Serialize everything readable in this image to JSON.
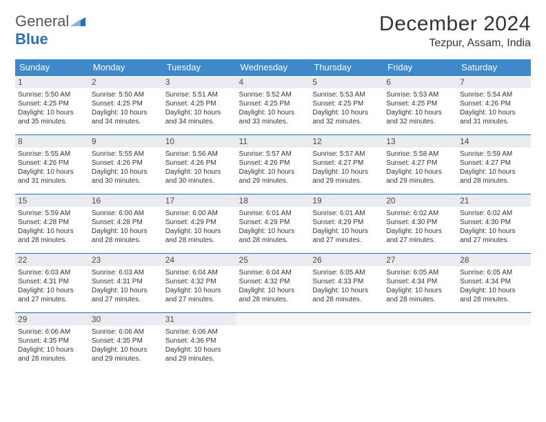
{
  "logo": {
    "part1": "General",
    "part2": "Blue"
  },
  "title": "December 2024",
  "location": "Tezpur, Assam, India",
  "header_colors": {
    "bar": "#3d89c9",
    "border": "#2b6fb5",
    "daynum_bg": "#e8ecef"
  },
  "weekdays": [
    "Sunday",
    "Monday",
    "Tuesday",
    "Wednesday",
    "Thursday",
    "Friday",
    "Saturday"
  ],
  "days": [
    {
      "n": 1,
      "sunrise": "5:50 AM",
      "sunset": "4:25 PM",
      "daylight": "10 hours and 35 minutes."
    },
    {
      "n": 2,
      "sunrise": "5:50 AM",
      "sunset": "4:25 PM",
      "daylight": "10 hours and 34 minutes."
    },
    {
      "n": 3,
      "sunrise": "5:51 AM",
      "sunset": "4:25 PM",
      "daylight": "10 hours and 34 minutes."
    },
    {
      "n": 4,
      "sunrise": "5:52 AM",
      "sunset": "4:25 PM",
      "daylight": "10 hours and 33 minutes."
    },
    {
      "n": 5,
      "sunrise": "5:53 AM",
      "sunset": "4:25 PM",
      "daylight": "10 hours and 32 minutes."
    },
    {
      "n": 6,
      "sunrise": "5:53 AM",
      "sunset": "4:25 PM",
      "daylight": "10 hours and 32 minutes."
    },
    {
      "n": 7,
      "sunrise": "5:54 AM",
      "sunset": "4:26 PM",
      "daylight": "10 hours and 31 minutes."
    },
    {
      "n": 8,
      "sunrise": "5:55 AM",
      "sunset": "4:26 PM",
      "daylight": "10 hours and 31 minutes."
    },
    {
      "n": 9,
      "sunrise": "5:55 AM",
      "sunset": "4:26 PM",
      "daylight": "10 hours and 30 minutes."
    },
    {
      "n": 10,
      "sunrise": "5:56 AM",
      "sunset": "4:26 PM",
      "daylight": "10 hours and 30 minutes."
    },
    {
      "n": 11,
      "sunrise": "5:57 AM",
      "sunset": "4:26 PM",
      "daylight": "10 hours and 29 minutes."
    },
    {
      "n": 12,
      "sunrise": "5:57 AM",
      "sunset": "4:27 PM",
      "daylight": "10 hours and 29 minutes."
    },
    {
      "n": 13,
      "sunrise": "5:58 AM",
      "sunset": "4:27 PM",
      "daylight": "10 hours and 29 minutes."
    },
    {
      "n": 14,
      "sunrise": "5:59 AM",
      "sunset": "4:27 PM",
      "daylight": "10 hours and 28 minutes."
    },
    {
      "n": 15,
      "sunrise": "5:59 AM",
      "sunset": "4:28 PM",
      "daylight": "10 hours and 28 minutes."
    },
    {
      "n": 16,
      "sunrise": "6:00 AM",
      "sunset": "4:28 PM",
      "daylight": "10 hours and 28 minutes."
    },
    {
      "n": 17,
      "sunrise": "6:00 AM",
      "sunset": "4:29 PM",
      "daylight": "10 hours and 28 minutes."
    },
    {
      "n": 18,
      "sunrise": "6:01 AM",
      "sunset": "4:29 PM",
      "daylight": "10 hours and 28 minutes."
    },
    {
      "n": 19,
      "sunrise": "6:01 AM",
      "sunset": "4:29 PM",
      "daylight": "10 hours and 27 minutes."
    },
    {
      "n": 20,
      "sunrise": "6:02 AM",
      "sunset": "4:30 PM",
      "daylight": "10 hours and 27 minutes."
    },
    {
      "n": 21,
      "sunrise": "6:02 AM",
      "sunset": "4:30 PM",
      "daylight": "10 hours and 27 minutes."
    },
    {
      "n": 22,
      "sunrise": "6:03 AM",
      "sunset": "4:31 PM",
      "daylight": "10 hours and 27 minutes."
    },
    {
      "n": 23,
      "sunrise": "6:03 AM",
      "sunset": "4:31 PM",
      "daylight": "10 hours and 27 minutes."
    },
    {
      "n": 24,
      "sunrise": "6:04 AM",
      "sunset": "4:32 PM",
      "daylight": "10 hours and 27 minutes."
    },
    {
      "n": 25,
      "sunrise": "6:04 AM",
      "sunset": "4:32 PM",
      "daylight": "10 hours and 28 minutes."
    },
    {
      "n": 26,
      "sunrise": "6:05 AM",
      "sunset": "4:33 PM",
      "daylight": "10 hours and 28 minutes."
    },
    {
      "n": 27,
      "sunrise": "6:05 AM",
      "sunset": "4:34 PM",
      "daylight": "10 hours and 28 minutes."
    },
    {
      "n": 28,
      "sunrise": "6:05 AM",
      "sunset": "4:34 PM",
      "daylight": "10 hours and 28 minutes."
    },
    {
      "n": 29,
      "sunrise": "6:06 AM",
      "sunset": "4:35 PM",
      "daylight": "10 hours and 28 minutes."
    },
    {
      "n": 30,
      "sunrise": "6:06 AM",
      "sunset": "4:35 PM",
      "daylight": "10 hours and 29 minutes."
    },
    {
      "n": 31,
      "sunrise": "6:06 AM",
      "sunset": "4:36 PM",
      "daylight": "10 hours and 29 minutes."
    }
  ],
  "labels": {
    "sunrise": "Sunrise: ",
    "sunset": "Sunset: ",
    "daylight": "Daylight: "
  },
  "start_weekday": 0,
  "total_cells": 35
}
